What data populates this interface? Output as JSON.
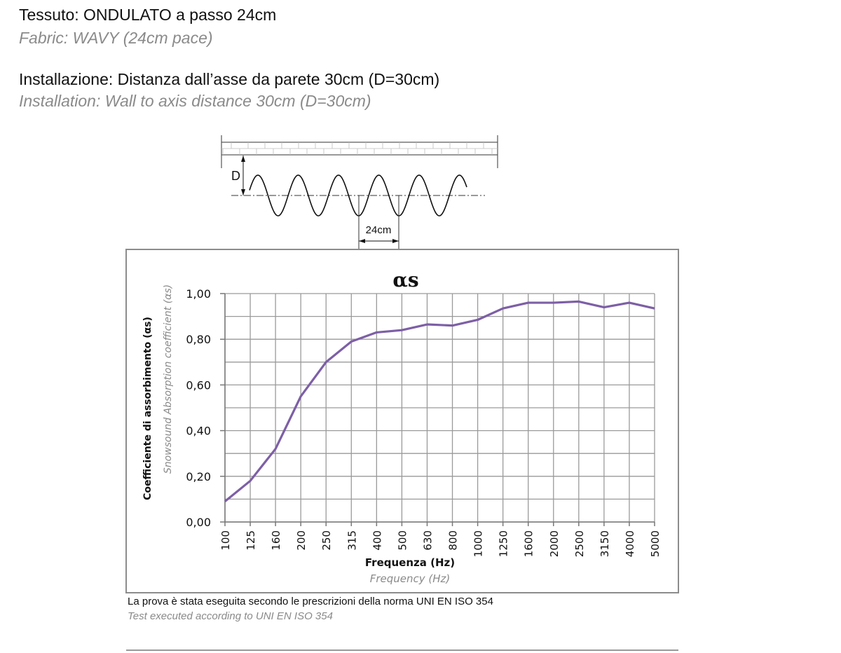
{
  "header": {
    "fabric_it": "Tessuto: ONDULATO a passo 24cm",
    "fabric_en": "Fabric: WAVY (24cm pace)",
    "install_it": "Installazione: Distanza dall’asse da parete 30cm (D=30cm)",
    "install_en": "Installation: Wall to axis distance 30cm (D=30cm)"
  },
  "diagram": {
    "d_label": "D",
    "pitch_label": "24cm"
  },
  "footer": {
    "note_it": "La prova è stata eseguita secondo le prescrizioni della norma UNI EN ISO 354",
    "note_en": "Test executed according  to UNI EN ISO 354"
  },
  "chart_data": {
    "type": "line",
    "title": "αs",
    "xlabel": "Frequenza (Hz)",
    "xlabel_en": "Frequency (Hz)",
    "ylabel": "Coefficiente di assorbimento (αs)",
    "ylabel_en": "Snowsound Absorption coefficient (αs)",
    "categories": [
      "100",
      "125",
      "160",
      "200",
      "250",
      "315",
      "400",
      "500",
      "630",
      "800",
      "1000",
      "1250",
      "1600",
      "2000",
      "2500",
      "3150",
      "4000",
      "5000"
    ],
    "series": [
      {
        "values": [
          0.09,
          0.18,
          0.32,
          0.55,
          0.7,
          0.79,
          0.83,
          0.84,
          0.865,
          0.86,
          0.885,
          0.935,
          0.96,
          0.96,
          0.965,
          0.94,
          0.96,
          0.935
        ]
      }
    ],
    "ylim": [
      0,
      1
    ],
    "yticks": [
      "0,00",
      "0,20",
      "0,40",
      "0,60",
      "0,80",
      "1,00"
    ],
    "grid": true,
    "line_color": "#7d5fa6"
  }
}
